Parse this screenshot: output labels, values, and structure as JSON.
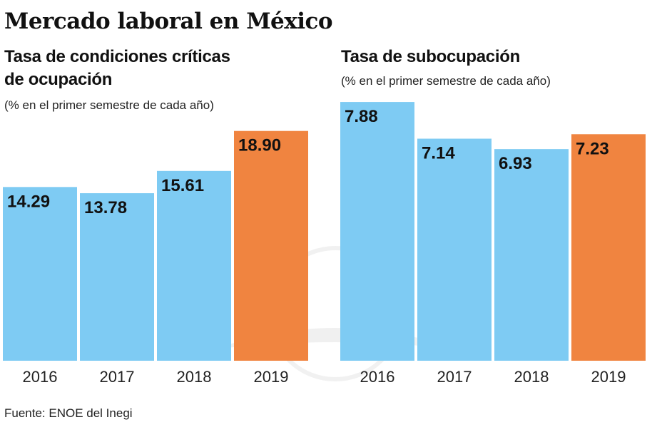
{
  "title": "Mercado laboral en México",
  "source": "Fuente: ENOE del Inegi",
  "colors": {
    "blue": "#7ecbf3",
    "orange": "#f08440"
  },
  "chart_data": [
    {
      "type": "bar",
      "title_lines": [
        "Tasa de condiciones críticas",
        "de ocupación"
      ],
      "subtitle": "(% en el primer semestre de cada año)",
      "categories": [
        "2016",
        "2017",
        "2018",
        "2019"
      ],
      "values": [
        14.29,
        13.78,
        15.61,
        18.9
      ],
      "labels": [
        "14.29",
        "13.78",
        "15.61",
        "18.90"
      ],
      "highlight": "2019",
      "ylim": [
        0,
        19
      ],
      "grid": false
    },
    {
      "type": "bar",
      "title_lines": [
        "Tasa de subocupación"
      ],
      "subtitle": "(% en el primer semestre de cada año)",
      "categories": [
        "2016",
        "2017",
        "2018",
        "2019"
      ],
      "values": [
        7.88,
        7.14,
        6.93,
        7.23
      ],
      "labels": [
        "7.88",
        "7.14",
        "6.93",
        "7.23"
      ],
      "highlight": "2019",
      "ylim": [
        2.66,
        7.91
      ],
      "grid": false
    }
  ]
}
